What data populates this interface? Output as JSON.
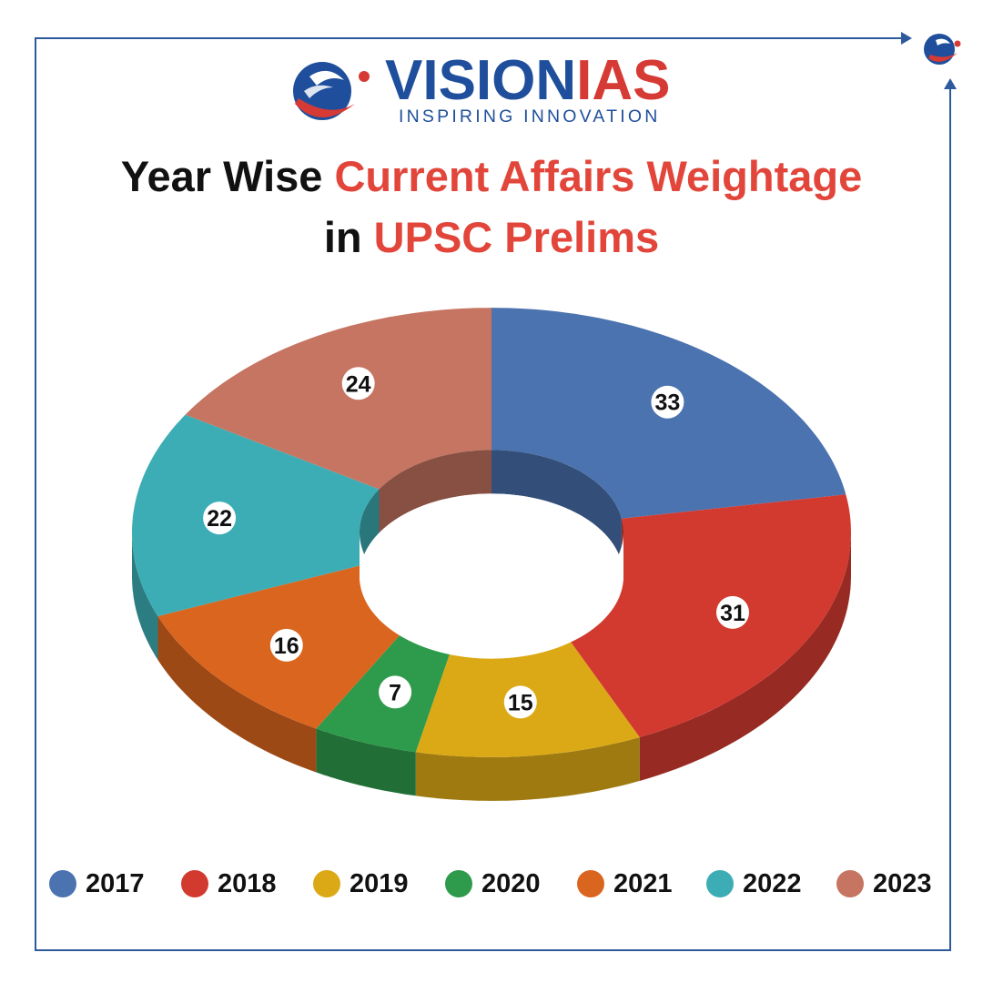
{
  "brand": {
    "name_part1": "VISION",
    "name_part2": "IAS",
    "tagline": "INSPIRING INNOVATION"
  },
  "headline": {
    "line1_black": "Year Wise ",
    "line1_red": "Current Affairs Weightage",
    "line2_black": "in ",
    "line2_red": "UPSC Prelims"
  },
  "colors": {
    "frame": "#2c5a9c",
    "accent_red": "#e2453a",
    "brand_blue": "#1f4f9c"
  },
  "chart_data": {
    "type": "pie",
    "style": "3d-donut",
    "title": "Year Wise Current Affairs Weightage in UPSC Prelims",
    "legend_position": "bottom",
    "categories": [
      "2017",
      "2018",
      "2019",
      "2020",
      "2021",
      "2022",
      "2023"
    ],
    "values": [
      33,
      31,
      15,
      7,
      16,
      22,
      24
    ],
    "colors": [
      "#4b73b0",
      "#d23a30",
      "#dca916",
      "#2e9a4b",
      "#da651f",
      "#3dadb5",
      "#c67562"
    ]
  }
}
